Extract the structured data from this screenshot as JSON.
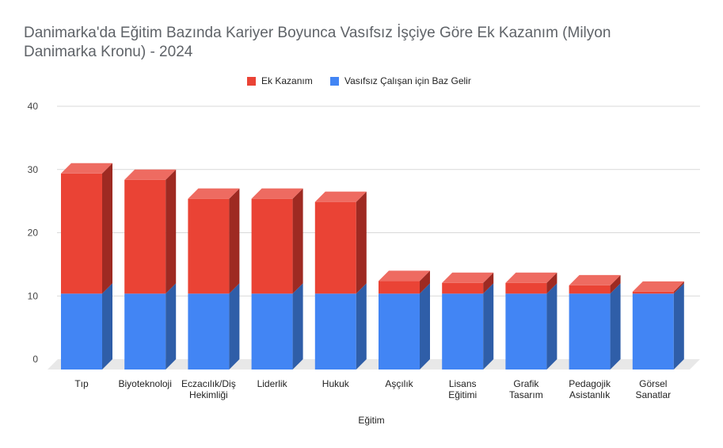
{
  "chart_data": {
    "type": "bar",
    "stacked": true,
    "title": "Danimarka'da Eğitim Bazında Kariyer Boyunca Vasıfsız İşçiye Göre Ek Kazanım (Milyon Danimarka Kronu)  - 2024",
    "xlabel": "Eğitim",
    "ylabel": "",
    "ylim": [
      0,
      40
    ],
    "yticks": [
      "0",
      "10",
      "20",
      "30",
      "40"
    ],
    "grid": true,
    "legend_position": "top",
    "categories": [
      [
        "Tıp"
      ],
      [
        "Biyoteknoloji"
      ],
      [
        "Eczacılık/Diş",
        "Hekimliği"
      ],
      [
        "Liderlik"
      ],
      [
        "Hukuk"
      ],
      [
        "Aşçılık"
      ],
      [
        "Lisans",
        "Eğitimi"
      ],
      [
        "Grafik",
        "Tasarım"
      ],
      [
        "Pedagojik",
        "Asistanlık"
      ],
      [
        "Görsel",
        "Sanatlar"
      ]
    ],
    "series": [
      {
        "name": "Vasıfsız Çalışan için Baz Gelir",
        "color": "#4285f4",
        "side_color": "#2f5ea8",
        "values": [
          12,
          12,
          12,
          12,
          12,
          12,
          12,
          12,
          12,
          12
        ]
      },
      {
        "name": "Ek Kazanım",
        "color": "#ea4335",
        "side_color": "#9e2a22",
        "top_color": "#ee6b61",
        "values": [
          19,
          18,
          15,
          15,
          14.5,
          2,
          1.7,
          1.7,
          1.3,
          0.3
        ]
      }
    ],
    "legend_order": [
      1,
      0
    ],
    "floor_color": "#e8e8e8",
    "grid_color": "#d9d9d9"
  }
}
